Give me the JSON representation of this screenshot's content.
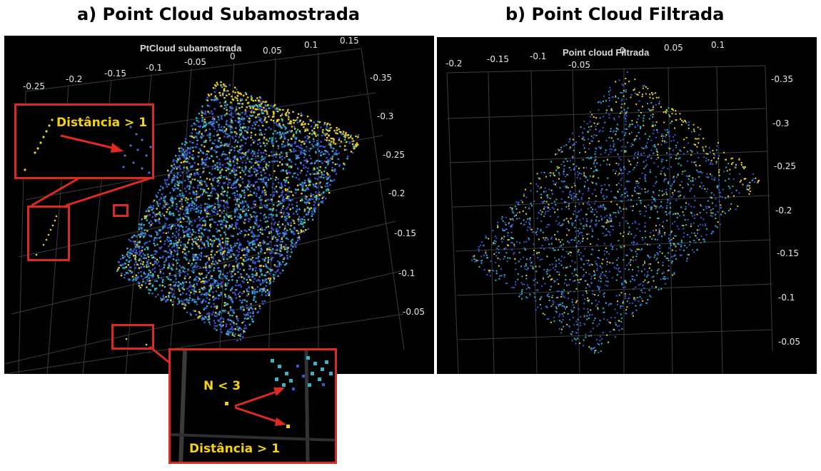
{
  "captions": {
    "a": "a) Point Cloud Subamostrada",
    "b": "b) Point Cloud Filtrada"
  },
  "panel_a": {
    "title": "PtCloud subamostrada",
    "x_ticks": [
      "-0.25",
      "-0.2",
      "-0.15",
      "-0.1",
      "-0.05",
      "0",
      "0.05",
      "0.1",
      "0.15"
    ],
    "y_ticks": [
      "-0.35",
      "-0.3",
      "-0.25",
      "-0.2",
      "-0.15",
      "-0.1",
      "-0.05"
    ],
    "annotations": {
      "distance_label_1": "Distância > 1",
      "neighbors_label": "N < 3",
      "distance_label_2": "Distância > 1"
    }
  },
  "panel_b": {
    "title": "Point cloud Filtrada",
    "x_ticks": [
      "-0.2",
      "-0.15",
      "-0.1",
      "-0.05",
      "0",
      "0.05",
      "0.1"
    ],
    "y_ticks": [
      "-0.35",
      "-0.3",
      "-0.25",
      "-0.2",
      "-0.15",
      "-0.1",
      "-0.05"
    ]
  },
  "colors": {
    "background": "#000000",
    "highlight_red": "#d92b20",
    "annotation_yellow": "#f5d210",
    "point_blue": "#3a56d6",
    "point_cyan": "#2fb8c8",
    "point_yellow": "#e8d020"
  }
}
